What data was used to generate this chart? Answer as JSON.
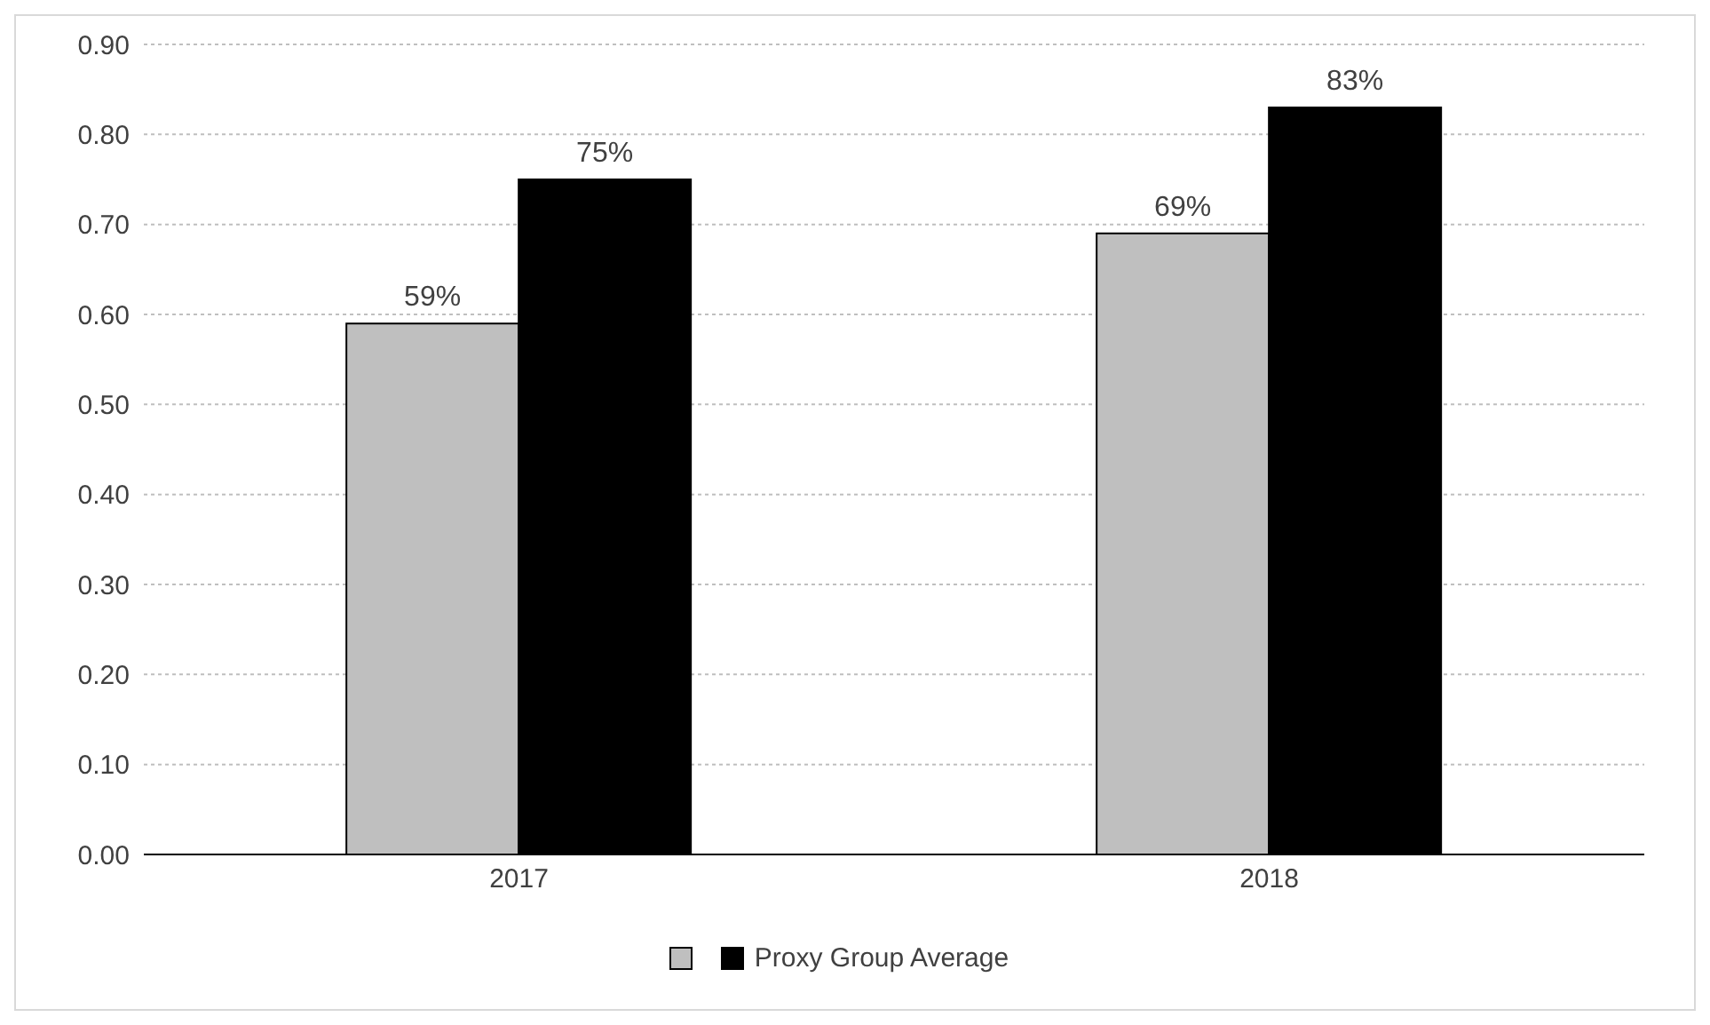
{
  "chart_data": {
    "type": "bar",
    "categories": [
      "2017",
      "2018"
    ],
    "series": [
      {
        "color": "#bfbfbf",
        "values": [
          0.59,
          0.69
        ],
        "value_labels": [
          "59%",
          "69%"
        ]
      },
      {
        "name": "Proxy Group Average",
        "color": "#000000",
        "values": [
          0.75,
          0.83
        ],
        "value_labels": [
          "75%",
          "83%"
        ]
      }
    ],
    "ylim": [
      0,
      0.9
    ],
    "yticks": [
      {
        "value": 0,
        "label": "0.00"
      },
      {
        "value": 0.1,
        "label": "0.10"
      },
      {
        "value": 0.2,
        "label": "0.20"
      },
      {
        "value": 0.3,
        "label": "0.30"
      },
      {
        "value": 0.4,
        "label": "0.40"
      },
      {
        "value": 0.5,
        "label": "0.50"
      },
      {
        "value": 0.6,
        "label": "0.60"
      },
      {
        "value": 0.7,
        "label": "0.70"
      },
      {
        "value": 0.8,
        "label": "0.80"
      },
      {
        "value": 0.9,
        "label": "0.90"
      }
    ],
    "grid": "y",
    "legend": "bottom"
  }
}
